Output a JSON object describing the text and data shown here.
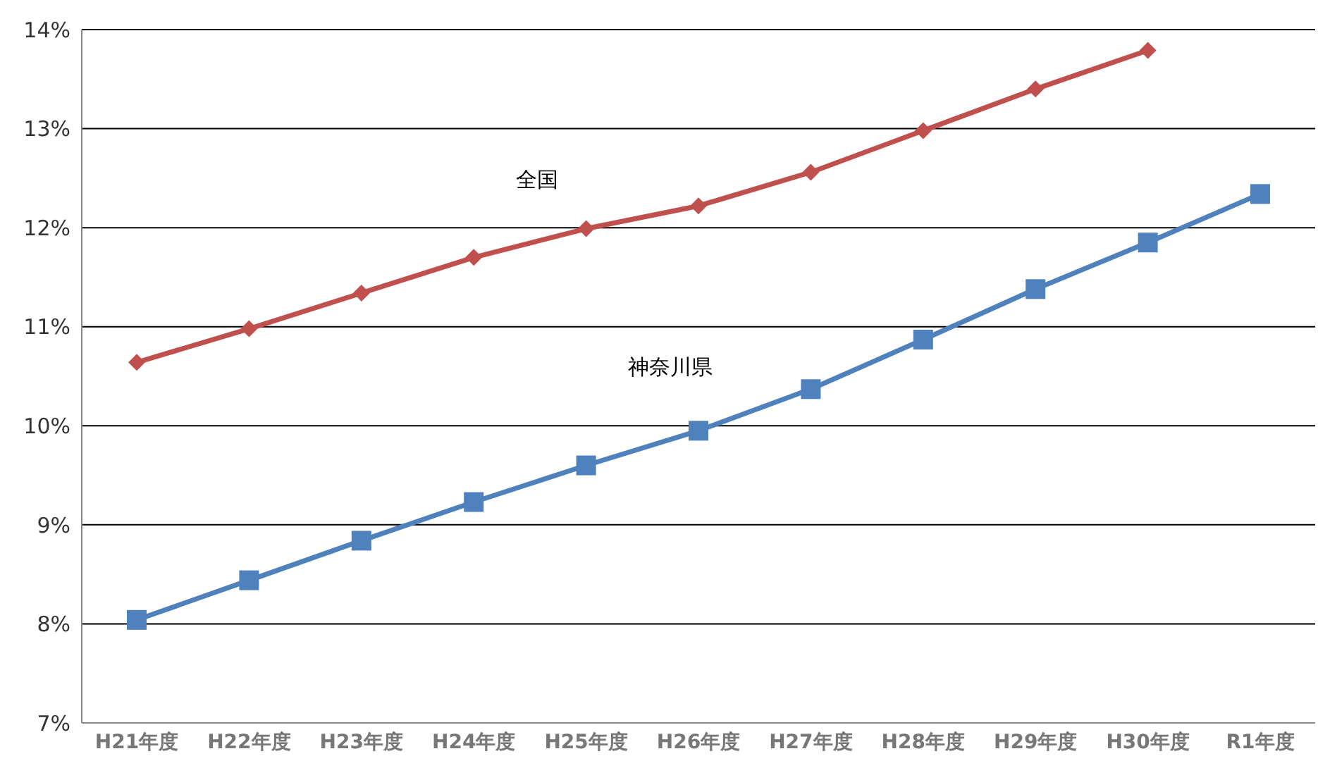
{
  "chart_data": {
    "type": "line",
    "categories": [
      "H21年度",
      "H22年度",
      "H23年度",
      "H24年度",
      "H25年度",
      "H26年度",
      "H27年度",
      "H28年度",
      "H29年度",
      "H30年度",
      "R1年度"
    ],
    "series": [
      {
        "name": "全国",
        "color": "#c0504d",
        "marker": "diamond",
        "values": [
          10.64,
          10.98,
          11.34,
          11.7,
          11.99,
          12.22,
          12.56,
          12.98,
          13.4,
          13.79,
          null
        ]
      },
      {
        "name": "神奈川県",
        "color": "#4f81bd",
        "marker": "square",
        "values": [
          8.04,
          8.44,
          8.84,
          9.23,
          9.6,
          9.95,
          10.37,
          10.87,
          11.38,
          11.85,
          12.34
        ]
      }
    ],
    "ylim": [
      7,
      14
    ],
    "yticks": [
      {
        "value": 7,
        "label": "7%"
      },
      {
        "value": 8,
        "label": "8%"
      },
      {
        "value": 9,
        "label": "9%"
      },
      {
        "value": 10,
        "label": "10%"
      },
      {
        "value": 11,
        "label": "11%"
      },
      {
        "value": 12,
        "label": "12%"
      },
      {
        "value": 13,
        "label": "13%"
      },
      {
        "value": 14,
        "label": "14%"
      }
    ],
    "grid": "y",
    "legend": false
  }
}
